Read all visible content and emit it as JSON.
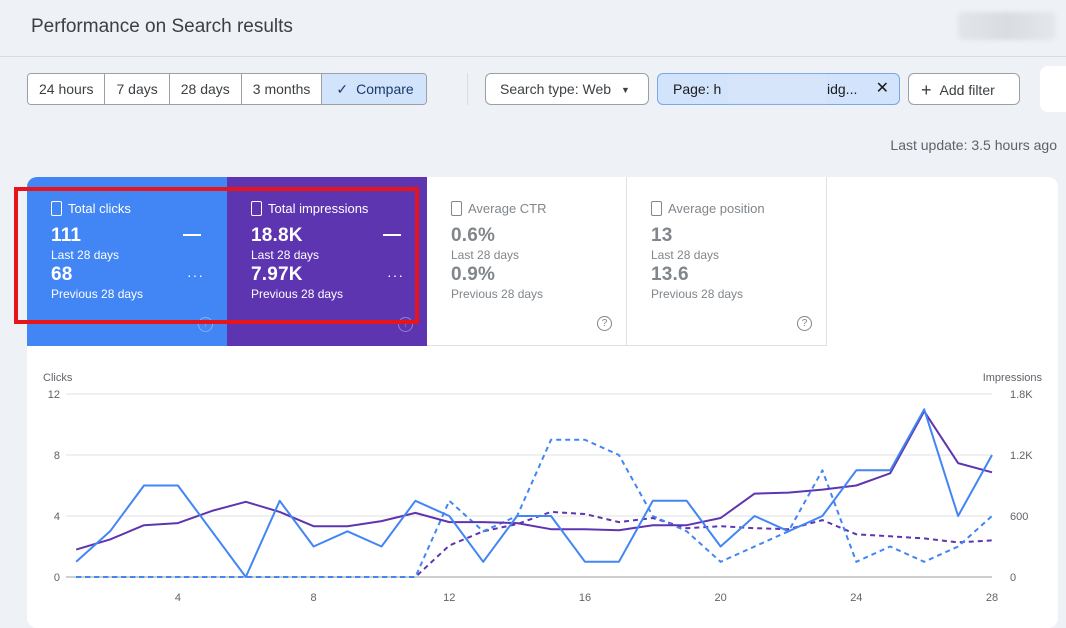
{
  "header": {
    "title": "Performance on Search results"
  },
  "date_range": {
    "options": [
      "24 hours",
      "7 days",
      "28 days",
      "3 months"
    ],
    "compare": {
      "check_icon": "check-icon",
      "label": "Compare"
    }
  },
  "filters": {
    "search_type": {
      "label": "Search type: Web",
      "icon": "caret-down-icon"
    },
    "page": {
      "prefix": "Page: h",
      "suffix": "idg...",
      "close_icon": "close-icon"
    },
    "add_filter": {
      "icon": "plus-icon",
      "label": "Add filter"
    }
  },
  "last_update": "Last update: 3.5 hours ago",
  "metrics": [
    {
      "label": "Total clicks",
      "current_value": "111",
      "current_period": "Last 28 days",
      "previous_value": "68",
      "previous_period": "Previous 28 days"
    },
    {
      "label": "Total impressions",
      "current_value": "18.8K",
      "current_period": "Last 28 days",
      "previous_value": "7.97K",
      "previous_period": "Previous 28 days"
    },
    {
      "label": "Average CTR",
      "current_value": "0.6%",
      "current_period": "Last 28 days",
      "previous_value": "0.9%",
      "previous_period": "Previous 28 days"
    },
    {
      "label": "Average position",
      "current_value": "13",
      "current_period": "Last 28 days",
      "previous_value": "13.6",
      "previous_period": "Previous 28 days"
    }
  ],
  "colors": {
    "clicks": "#4285f4",
    "impressions": "#5e35b1",
    "highlight": "#e8141b"
  },
  "chart_data": {
    "type": "line",
    "ylabel_left": "Clicks",
    "ylabel_right": "Impressions",
    "ylim_left": [
      0,
      12
    ],
    "ylim_right": [
      0,
      1800
    ],
    "yticks_left": [
      "0",
      "4",
      "8",
      "12"
    ],
    "yticks_right": [
      "0",
      "600",
      "1.2K",
      "1.8K"
    ],
    "x": [
      1,
      2,
      3,
      4,
      5,
      6,
      7,
      8,
      9,
      10,
      11,
      12,
      13,
      14,
      15,
      16,
      17,
      18,
      19,
      20,
      21,
      22,
      23,
      24,
      25,
      26,
      27,
      28
    ],
    "xticks": [
      "4",
      "8",
      "12",
      "16",
      "20",
      "24",
      "28"
    ],
    "grid": true,
    "series": [
      {
        "metric": "clicks",
        "period": "current",
        "axis": "left",
        "style": "solid",
        "values": [
          1,
          3,
          6,
          6,
          3,
          0,
          5,
          2,
          3,
          2,
          5,
          4,
          1,
          4,
          4,
          1,
          1,
          5,
          5,
          2,
          4,
          3,
          4,
          7,
          7,
          11,
          4,
          8
        ]
      },
      {
        "metric": "clicks",
        "period": "previous",
        "axis": "left",
        "style": "dashed",
        "values": [
          0,
          0,
          0,
          0,
          0,
          0,
          0,
          0,
          0,
          0,
          0,
          5,
          3,
          4,
          9,
          9,
          8,
          4,
          3,
          1,
          2,
          3,
          7,
          1,
          2,
          1,
          2,
          4
        ]
      },
      {
        "metric": "impressions",
        "period": "current",
        "axis": "right",
        "style": "solid",
        "values": [
          270,
          370,
          510,
          530,
          650,
          740,
          640,
          500,
          500,
          550,
          630,
          540,
          540,
          530,
          470,
          470,
          460,
          510,
          510,
          580,
          820,
          830,
          860,
          900,
          1020,
          1630,
          1120,
          1030
        ]
      },
      {
        "metric": "impressions",
        "period": "previous",
        "axis": "right",
        "style": "dashed",
        "values": [
          0,
          0,
          0,
          0,
          0,
          0,
          0,
          0,
          0,
          0,
          0,
          310,
          450,
          520,
          640,
          620,
          540,
          580,
          480,
          500,
          480,
          470,
          560,
          420,
          400,
          380,
          340,
          360
        ]
      }
    ]
  }
}
